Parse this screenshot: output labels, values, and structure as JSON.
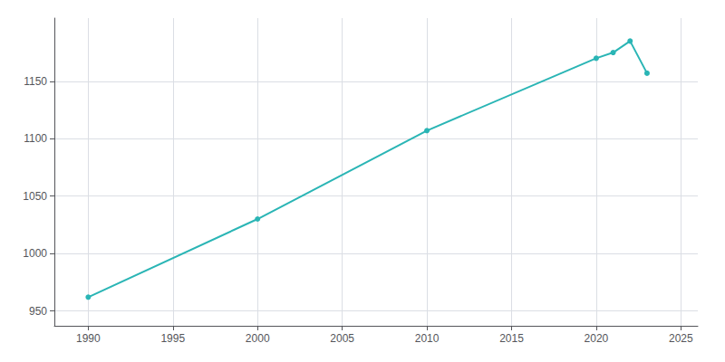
{
  "chart_data": {
    "type": "line",
    "x": [
      1990,
      2000,
      2010,
      2020,
      2021,
      2022,
      2023
    ],
    "values": [
      962,
      1030,
      1107,
      1170,
      1175,
      1185,
      1157
    ],
    "color": "#2ab5b5",
    "marker": "circle",
    "xlim": [
      1988,
      2026
    ],
    "ylim": [
      937,
      1205
    ],
    "xticks": [
      1990,
      1995,
      2000,
      2005,
      2010,
      2015,
      2020,
      2025
    ],
    "yticks": [
      950,
      1000,
      1050,
      1100,
      1150
    ],
    "grid": true
  }
}
